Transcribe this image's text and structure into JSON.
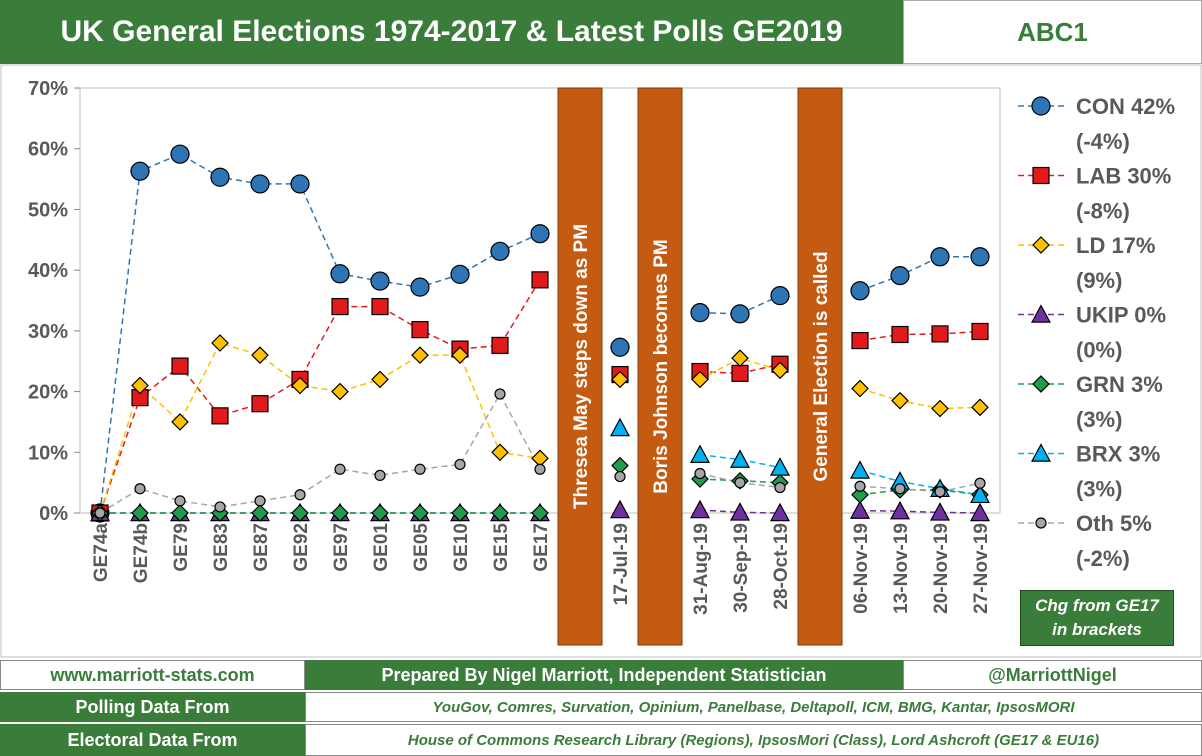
{
  "header": {
    "title": "UK General Elections 1974-2017 & Latest Polls GE2019",
    "subtitle": "ABC1"
  },
  "footer": {
    "website": "www.marriott-stats.com",
    "prepared_by": "Prepared By Nigel Marriott, Independent Statistician",
    "twitter": "@MarriottNigel",
    "polling_label": "Polling Data From",
    "polling_sources": "YouGov, Comres, Survation, Opinium, Panelbase, Deltapoll, ICM, BMG, Kantar, IpsosMORI",
    "electoral_label": "Electoral Data From",
    "electoral_sources": "House of Commons Research Library (Regions), IpsosMori (Class), Lord Ashcroft (GE17 & EU16)"
  },
  "chg_note": "Chg from GE17\nin brackets",
  "chart_data": {
    "type": "line",
    "title": "UK General Elections 1974-2017 & Latest Polls GE2019",
    "subtitle": "ABC1",
    "ylim": [
      0,
      70
    ],
    "yticks": [
      "0%",
      "10%",
      "20%",
      "30%",
      "40%",
      "50%",
      "60%",
      "70%"
    ],
    "grid": false,
    "legend_position": "right",
    "categories": [
      "GE74a",
      "GE74b",
      "GE79",
      "GE83",
      "GE87",
      "GE92",
      "GE97",
      "GE01",
      "GE05",
      "GE10",
      "GE15",
      "GE17",
      "",
      "17-Jul-19",
      "",
      "31-Aug-19",
      "30-Sep-19",
      "28-Oct-19",
      "",
      "06-Nov-19",
      "13-Nov-19",
      "20-Nov-19",
      "27-Nov-19"
    ],
    "events": [
      {
        "label": "Thresea May steps down as PM",
        "position_index": 12
      },
      {
        "label": "Boris Johnson becomes PM",
        "position_index": 14
      },
      {
        "label": "General Election is called",
        "position_index": 18
      }
    ],
    "series": [
      {
        "name": "CON",
        "legend": "CON 42%",
        "change": "(-4%)",
        "color": "#2e75b6",
        "marker": "circle",
        "values": [
          0,
          56.3,
          59.1,
          55.3,
          54.2,
          54.2,
          39.4,
          38.2,
          37.2,
          39.3,
          43.1,
          46.0,
          null,
          27.3,
          null,
          33.0,
          32.8,
          35.8,
          null,
          36.6,
          39.1,
          42.2,
          42.2
        ]
      },
      {
        "name": "LAB",
        "legend": "LAB 30%",
        "change": "(-8%)",
        "color": "#e31a1c",
        "marker": "square",
        "values": [
          0,
          19.0,
          24.2,
          16.0,
          18.0,
          22.0,
          34.0,
          34.0,
          30.2,
          27.0,
          27.6,
          38.4,
          null,
          22.8,
          null,
          23.3,
          23.0,
          24.5,
          null,
          28.4,
          29.4,
          29.5,
          29.9
        ]
      },
      {
        "name": "LD",
        "legend": "LD 17%",
        "change": "(9%)",
        "color": "#ffc000",
        "marker": "diamond",
        "values": [
          0,
          21.0,
          15.0,
          28.0,
          26.0,
          21.0,
          20.0,
          22.0,
          26.0,
          26.0,
          10.0,
          9.0,
          null,
          22.0,
          null,
          22.0,
          25.5,
          23.5,
          null,
          20.5,
          18.5,
          17.2,
          17.4
        ]
      },
      {
        "name": "UKIP",
        "legend": "UKIP 0%",
        "change": "(0%)",
        "color": "#7030a0",
        "marker": "triangle",
        "values": [
          0,
          0,
          0,
          0,
          0,
          0,
          0,
          0,
          0,
          0,
          0,
          0,
          null,
          0.5,
          null,
          0.5,
          0.1,
          0,
          null,
          0.4,
          0.3,
          0.1,
          0
        ]
      },
      {
        "name": "GRN",
        "legend": "GRN 3%",
        "change": "(3%)",
        "color": "#1e9e4a",
        "marker": "diamond",
        "values": [
          0,
          0,
          0,
          0,
          0,
          0,
          0,
          0,
          0,
          0,
          0,
          0,
          null,
          7.8,
          null,
          5.6,
          5.3,
          5.0,
          null,
          3.0,
          3.8,
          3.8,
          3.0
        ]
      },
      {
        "name": "BRX",
        "legend": "BRX 3%",
        "change": "(3%)",
        "color": "#00b0f0",
        "marker": "triangle",
        "values": [
          null,
          null,
          null,
          null,
          null,
          null,
          null,
          null,
          null,
          null,
          null,
          null,
          null,
          14.0,
          null,
          9.6,
          8.8,
          7.5,
          null,
          7.0,
          5.2,
          4.0,
          3.0
        ]
      },
      {
        "name": "Oth",
        "legend": "Oth 5%",
        "change": "(-2%)",
        "color": "#a6a6a6",
        "marker": "circle",
        "values": [
          0,
          4.0,
          2.0,
          1.0,
          2.0,
          3.0,
          7.2,
          6.2,
          7.2,
          8.0,
          19.6,
          7.2,
          null,
          6.0,
          null,
          6.5,
          5.0,
          4.2,
          null,
          4.4,
          4.0,
          3.5,
          4.9
        ]
      }
    ]
  }
}
